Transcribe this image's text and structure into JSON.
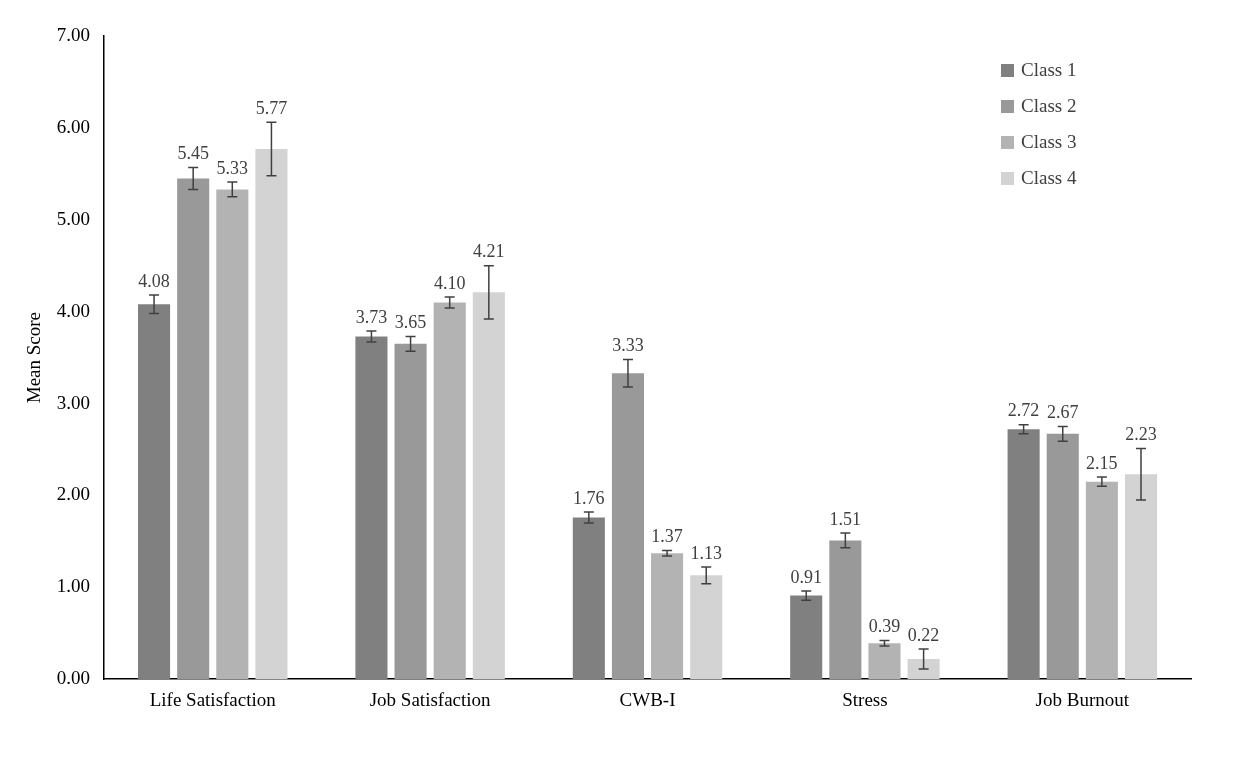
{
  "chart_data": {
    "type": "bar",
    "ylabel": "Mean Score",
    "categories": [
      "Life Satisfaction",
      "Job Satisfaction",
      "CWB-I",
      "Stress",
      "Job Burnout"
    ],
    "series": [
      {
        "name": "Class 1",
        "color": "#808080",
        "values": [
          4.08,
          3.73,
          1.76,
          0.91,
          2.72
        ],
        "value_labels": [
          "4.08",
          "3.73",
          "1.76",
          "0.91",
          "2.72"
        ],
        "errors": [
          0.1,
          0.06,
          0.06,
          0.05,
          0.05
        ]
      },
      {
        "name": "Class 2",
        "color": "#999999",
        "values": [
          5.45,
          3.65,
          3.33,
          1.51,
          2.67
        ],
        "value_labels": [
          "5.45",
          "3.65",
          "3.33",
          "1.51",
          "2.67"
        ],
        "errors": [
          0.12,
          0.08,
          0.15,
          0.08,
          0.08
        ]
      },
      {
        "name": "Class 3",
        "color": "#b3b3b3",
        "values": [
          5.33,
          4.1,
          1.37,
          0.39,
          2.15
        ],
        "value_labels": [
          "5.33",
          "4.10",
          "1.37",
          "0.39",
          "2.15"
        ],
        "errors": [
          0.08,
          0.06,
          0.03,
          0.03,
          0.05
        ]
      },
      {
        "name": "Class 4",
        "color": "#d3d3d3",
        "values": [
          5.77,
          4.21,
          1.13,
          0.22,
          2.23
        ],
        "value_labels": [
          "5.77",
          "4.21",
          "1.13",
          "0.22",
          "2.23"
        ],
        "errors": [
          0.29,
          0.29,
          0.09,
          0.11,
          0.28
        ]
      }
    ],
    "ylim": [
      0,
      7
    ],
    "yticks": [
      {
        "value": 0,
        "label": "0.00"
      },
      {
        "value": 1,
        "label": "1.00"
      },
      {
        "value": 2,
        "label": "2.00"
      },
      {
        "value": 3,
        "label": "3.00"
      },
      {
        "value": 4,
        "label": "4.00"
      },
      {
        "value": 5,
        "label": "5.00"
      },
      {
        "value": 6,
        "label": "6.00"
      },
      {
        "value": 7,
        "label": "7.00"
      }
    ],
    "grid": false,
    "legend": "top right"
  }
}
